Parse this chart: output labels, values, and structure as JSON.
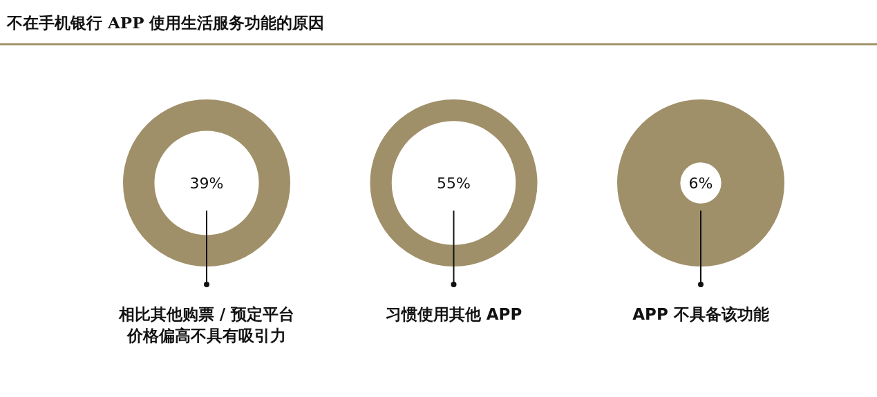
{
  "chart_data": {
    "type": "other",
    "title": "不在手机银行 APP 使用生活服务功能的原因",
    "categories": [
      "相比其他购票 / 预定平台价格偏高不具有吸引力",
      "习惯使用其他 APP",
      "APP 不具备该功能"
    ],
    "values": [
      39,
      55,
      6
    ],
    "value_labels": [
      "39%",
      "55%",
      "6%"
    ],
    "color": "#a09069"
  }
}
